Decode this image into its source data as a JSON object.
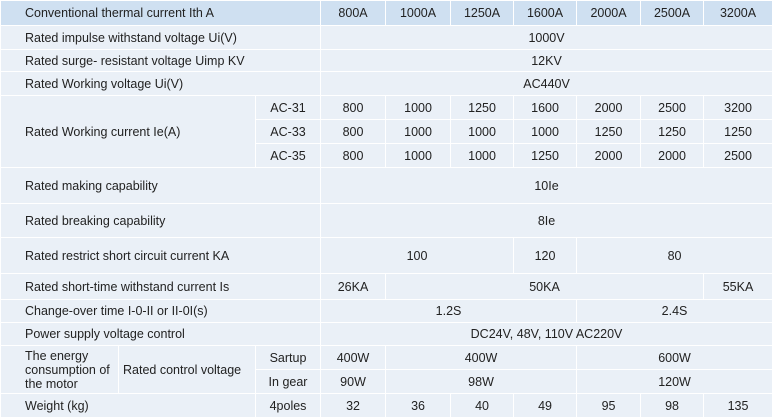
{
  "table": {
    "header": [
      "Conventional thermal current Ith A",
      "800A",
      "1000A",
      "1250A",
      "1600A",
      "2000A",
      "2500A",
      "3200A"
    ],
    "rows": [
      [
        "Rated impulse withstand voltage Ui(V)",
        "1000V"
      ],
      [
        "Rated surge- resistant voltage Uimp KV",
        "12KV"
      ],
      [
        "Rated Working voltage Ui(V)",
        "AC440V"
      ],
      [
        "Rated Working current Ie(A)",
        "AC-31",
        "800",
        "1000",
        "1250",
        "1600",
        "2000",
        "2500",
        "3200"
      ],
      [
        "AC-33",
        "800",
        "1000",
        "1000",
        "1000",
        "1250",
        "1250",
        "1250"
      ],
      [
        "AC-35",
        "800",
        "1000",
        "1000",
        "1250",
        "2000",
        "2000",
        "2500"
      ],
      [
        "Rated making capability",
        "10Ie"
      ],
      [
        "Rated breaking capability",
        "8Ie"
      ],
      [
        "Rated restrict short circuit current KA",
        "100",
        "120",
        "80"
      ],
      [
        "Rated short-time withstand current Is",
        "26KA",
        "50KA",
        "55KA"
      ],
      [
        "Change-over time I-0-II or II-0I(s)",
        "1.2S",
        "2.4S"
      ],
      [
        "Power supply voltage control",
        "DC24V, 48V, 110V AC220V"
      ],
      [
        "The energy consumption of the motor",
        "Rated control voltage",
        "Sartup",
        "400W",
        "400W",
        "600W"
      ],
      [
        "In gear",
        "90W",
        "98W",
        "120W"
      ],
      [
        "Weight (kg)",
        "4poles",
        "32",
        "36",
        "40",
        "49",
        "95",
        "98",
        "135"
      ]
    ]
  }
}
